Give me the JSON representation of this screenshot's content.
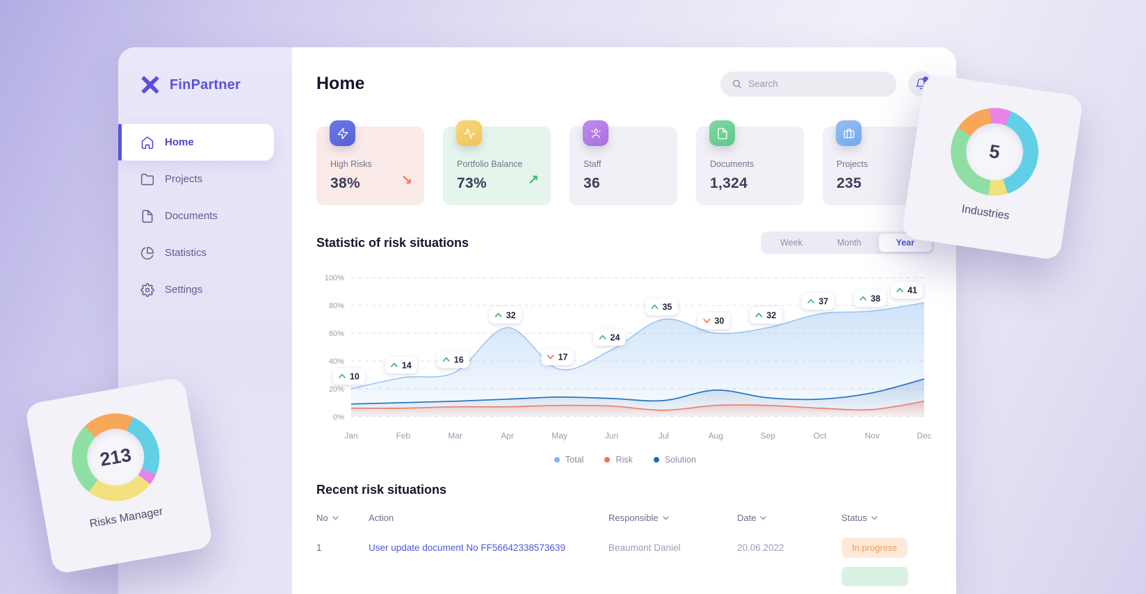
{
  "app": {
    "name": "FinPartner",
    "accent_color": "#5a52d5"
  },
  "sidebar": {
    "items": [
      {
        "label": "Home",
        "icon": "home-icon",
        "active": true
      },
      {
        "label": "Projects",
        "icon": "folder-icon",
        "active": false
      },
      {
        "label": "Documents",
        "icon": "file-icon",
        "active": false
      },
      {
        "label": "Statistics",
        "icon": "pie-chart-icon",
        "active": false
      },
      {
        "label": "Settings",
        "icon": "gear-icon",
        "active": false
      }
    ]
  },
  "header": {
    "title": "Home",
    "search_placeholder": "Search",
    "has_notification": true
  },
  "stats": [
    {
      "label": "High Risks",
      "value": "38%",
      "trend": "down",
      "trend_glyph": "↘",
      "card_bg": "#faeae8",
      "icon": "bolt-icon",
      "icon_bg": "#5f6ade"
    },
    {
      "label": "Portfolio Balance",
      "value": "73%",
      "trend": "up",
      "trend_glyph": "↗",
      "card_bg": "#e6f5ec",
      "icon": "pulse-icon",
      "icon_bg": "#f2cd66"
    },
    {
      "label": "Staff",
      "value": "36",
      "trend": null,
      "trend_glyph": "",
      "card_bg": "#f1f0f6",
      "icon": "people-icon",
      "icon_bg": "#b57ee6"
    },
    {
      "label": "Documents",
      "value": "1,324",
      "trend": null,
      "trend_glyph": "",
      "card_bg": "#f1f0f6",
      "icon": "document-icon",
      "icon_bg": "#6ed095"
    },
    {
      "label": "Projects",
      "value": "235",
      "trend": null,
      "trend_glyph": "",
      "card_bg": "#f1f0f6",
      "icon": "briefcase-icon",
      "icon_bg": "#85b7f0"
    }
  ],
  "chart_section": {
    "title": "Statistic of risk situations",
    "tabs": [
      "Week",
      "Month",
      "Year"
    ],
    "active_tab": "Year"
  },
  "chart_data": {
    "type": "area",
    "title": "Statistic of risk situations",
    "x": [
      "Jan",
      "Feb",
      "Mar",
      "Apr",
      "May",
      "Jun",
      "Jul",
      "Aug",
      "Sep",
      "Oct",
      "Nov",
      "Dec"
    ],
    "y_ticks": [
      "0%",
      "20%",
      "40%",
      "60%",
      "80%",
      "100%"
    ],
    "ylim": [
      0,
      100
    ],
    "grid": "dashed-horizontal",
    "legend_position": "bottom-center",
    "series": [
      {
        "name": "Total",
        "color": "#8fc0f1",
        "values": [
          10,
          14,
          16,
          32,
          17,
          24,
          35,
          30,
          32,
          37,
          38,
          41
        ],
        "plotted_pct": [
          20,
          28,
          32,
          64,
          34,
          48,
          70,
          60,
          64,
          74,
          76,
          82
        ],
        "point_labels": true,
        "label_directions": [
          "up",
          "up",
          "up",
          "up",
          "down",
          "up",
          "up",
          "down",
          "up",
          "up",
          "up",
          "up"
        ]
      },
      {
        "name": "Risk",
        "color": "#ef8270",
        "plotted_pct": [
          6,
          6,
          7,
          7,
          8,
          7.5,
          4.5,
          8,
          8,
          6,
          5,
          11
        ]
      },
      {
        "name": "Solution",
        "color": "#2e77bd",
        "plotted_pct": [
          9,
          10,
          11,
          12.5,
          14,
          13,
          11.5,
          19,
          13.5,
          12.5,
          17,
          27
        ]
      }
    ],
    "up_color": "#43b97c",
    "down_color": "#ef7a63"
  },
  "legend": [
    {
      "label": "Total",
      "color": "#7ab8f5"
    },
    {
      "label": "Risk",
      "color": "#f0705a"
    },
    {
      "label": "Solution",
      "color": "#1f6fb5"
    }
  ],
  "table": {
    "title": "Recent risk situations",
    "columns": [
      "No",
      "Action",
      "Responsible",
      "Date",
      "Status"
    ],
    "sortable_columns": [
      "No",
      "Responsible",
      "Date",
      "Status"
    ],
    "rows": [
      {
        "no": "1",
        "action": "User update document No FF56642338573639",
        "responsible": "Beaumont Daniel",
        "date": "20.06.2022",
        "status": "In progress",
        "status_bg": "#fdeada",
        "status_color": "#f09a50"
      }
    ],
    "partial_next_row": {
      "status_bg": "#d9f2e3"
    }
  },
  "floating_cards": {
    "industries": {
      "value": "5",
      "label": "Industries",
      "start_deg": -15,
      "segments": [
        {
          "name": "magenta",
          "color": "#e783e9",
          "pct": 8
        },
        {
          "name": "cyan",
          "color": "#5fd0e6",
          "pct": 39
        },
        {
          "name": "yellow",
          "color": "#f2e17c",
          "pct": 7
        },
        {
          "name": "green",
          "color": "#8fdfa4",
          "pct": 32
        },
        {
          "name": "orange",
          "color": "#f7a757",
          "pct": 14
        }
      ]
    },
    "risks_manager": {
      "value": "213",
      "label": "Risks Manager",
      "start_deg": -35,
      "segments": [
        {
          "name": "orange",
          "color": "#f7a757",
          "pct": 19
        },
        {
          "name": "cyan",
          "color": "#5fd0e6",
          "pct": 25
        },
        {
          "name": "magenta",
          "color": "#e783e9",
          "pct": 4
        },
        {
          "name": "yellow",
          "color": "#f2e17c",
          "pct": 25
        },
        {
          "name": "green",
          "color": "#8fdfa4",
          "pct": 27
        }
      ]
    }
  }
}
